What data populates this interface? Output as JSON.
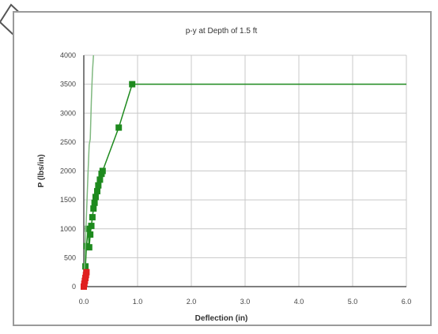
{
  "chart_data": {
    "type": "line",
    "title": "p-y at Depth of 1.5 ft",
    "xlabel": "Deflection (in)",
    "ylabel": "P (lbs/in)",
    "xlim": [
      0,
      6
    ],
    "ylim": [
      0,
      4000
    ],
    "x_ticks": [
      "0.0",
      "1.0",
      "2.0",
      "3.0",
      "4.0",
      "5.0",
      "6.0"
    ],
    "y_ticks": [
      "0",
      "500",
      "1000",
      "1500",
      "2000",
      "2500",
      "3000",
      "3500",
      "4000"
    ],
    "grid": true,
    "series": [
      {
        "color": "#1e8a1e",
        "marker": "square",
        "x": [
          0.0,
          0.03,
          0.05,
          0.08,
          0.1,
          0.12,
          0.14,
          0.16,
          0.18,
          0.2,
          0.22,
          0.25,
          0.27,
          0.3,
          0.33,
          0.35,
          0.65,
          0.9,
          6.0
        ],
        "y": [
          0,
          350,
          700,
          1000,
          680,
          900,
          1050,
          1200,
          1350,
          1450,
          1550,
          1650,
          1750,
          1850,
          1950,
          2000,
          2750,
          3500,
          3500
        ]
      },
      {
        "color": "#7fb87f",
        "marker": "none",
        "x": [
          0.0,
          0.08,
          0.1,
          0.12,
          0.14,
          0.16,
          0.18
        ],
        "y": [
          0,
          2000,
          2450,
          2550,
          3200,
          3700,
          4000
        ]
      },
      {
        "color": "#e02020",
        "marker": "square",
        "x": [
          0.0,
          0.01,
          0.02,
          0.03,
          0.04,
          0.05
        ],
        "y": [
          0,
          50,
          100,
          150,
          200,
          250
        ]
      }
    ]
  }
}
